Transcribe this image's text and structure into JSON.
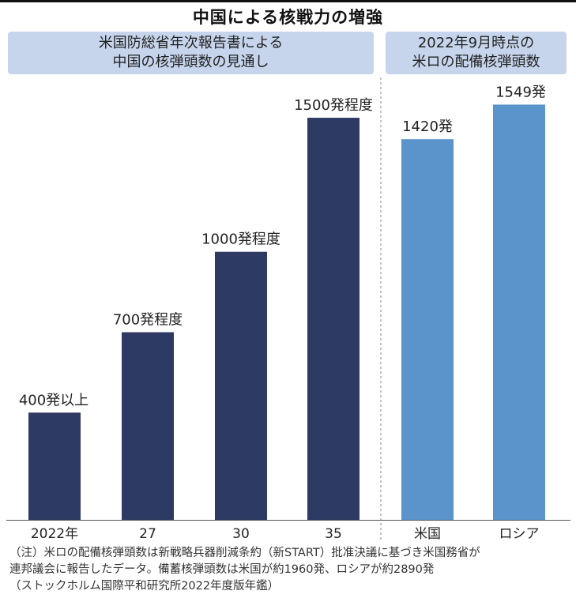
{
  "title": "中国による核戦力の増強",
  "headers": {
    "left_line1": "米国防総省年次報告書による",
    "left_line2": "中国の核弾頭数の見通し",
    "right_line1": "2022年9月時点の",
    "right_line2": "米ロの配備核弾頭数"
  },
  "colors": {
    "china_bar": "#2d3a63",
    "us_russia_bar": "#5b93cb",
    "header_bg": "#c6d5ec"
  },
  "chart_data": {
    "type": "bar",
    "title": "中国による核戦力の増強",
    "xlabel": "",
    "ylabel": "",
    "ylim": [
      0,
      1700
    ],
    "grid": false,
    "groups": [
      {
        "name": "米国防総省年次報告書による中国の核弾頭数の見通し",
        "color": "#2d3a63",
        "categories": [
          "2022年",
          "27",
          "30",
          "35"
        ],
        "values": [
          400,
          700,
          1000,
          1500
        ],
        "labels": [
          "400発以上",
          "700発程度",
          "1000発程度",
          "1500発程度"
        ]
      },
      {
        "name": "2022年9月時点の米ロの配備核弾頭数",
        "color": "#5b93cb",
        "categories": [
          "米国",
          "ロシア"
        ],
        "values": [
          1420,
          1549
        ],
        "labels": [
          "1420発",
          "1549発"
        ]
      }
    ]
  },
  "notes": [
    "（注）米ロの配備核弾頭数は新戦略兵器削減条約（新START）批准決議に基づき米国務省が",
    "連邦議会に報告したデータ。備蓄核弾頭数は米国が約1960発、ロシアが約2890発",
    "（ストックホルム国際平和研究所2022年度版年鑑）"
  ]
}
